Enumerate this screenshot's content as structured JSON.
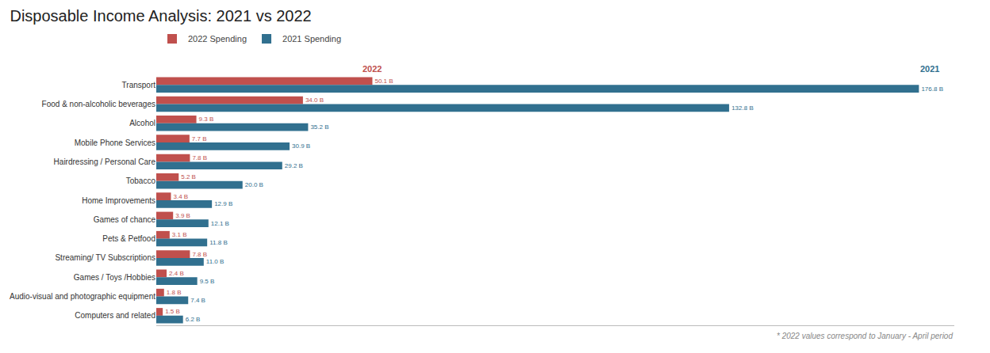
{
  "chart_data": {
    "type": "bar",
    "orientation": "horizontal",
    "title": "Disposable Income Analysis: 2021 vs 2022",
    "categories": [
      "Transport",
      "Food & non-alcoholic beverages",
      "Alcohol",
      "Mobile Phone Services",
      "Hairdressing / Personal Care",
      "Tobacco",
      "Home Improvements",
      "Games of chance",
      "Pets & Petfood",
      "Streaming/ TV Subscriptions",
      "Games / Toys /Hobbies",
      "Audio-visual and photographic equipment",
      "Computers and related"
    ],
    "series": [
      {
        "name": "2022 Spending",
        "color": "#c0504d",
        "values": [
          50.1,
          34.0,
          9.3,
          7.7,
          7.8,
          5.2,
          3.4,
          3.9,
          3.1,
          7.8,
          2.4,
          1.8,
          1.5
        ],
        "value_labels": [
          "50.1 B",
          "34.0 B",
          "9.3 B",
          "7.7 B",
          "7.8 B",
          "5.2 B",
          "3.4 B",
          "3.9 B",
          "3.1 B",
          "7.8 B",
          "2.4 B",
          "1.8 B",
          "1.5 B"
        ]
      },
      {
        "name": "2021 Spending",
        "color": "#31708f",
        "values": [
          176.8,
          132.8,
          35.2,
          30.9,
          29.2,
          20.0,
          12.9,
          12.1,
          11.8,
          11.0,
          9.5,
          7.4,
          6.2
        ],
        "value_labels": [
          "176.8 B",
          "132.8 B",
          "35.2 B",
          "30.9 B",
          "29.2 B",
          "20.0 B",
          "12.9 B",
          "12.1 B",
          "11.8 B",
          "11.0 B",
          "9.5 B",
          "7.4 B",
          "6.2 B"
        ]
      }
    ],
    "xlim": [
      0,
      185
    ],
    "tick_labels": "y",
    "grid": false,
    "legend": "upper left",
    "data_labels": true,
    "annotations": [
      "2022",
      "2021"
    ],
    "footnote": "* 2022 values correspond to January - April period"
  }
}
